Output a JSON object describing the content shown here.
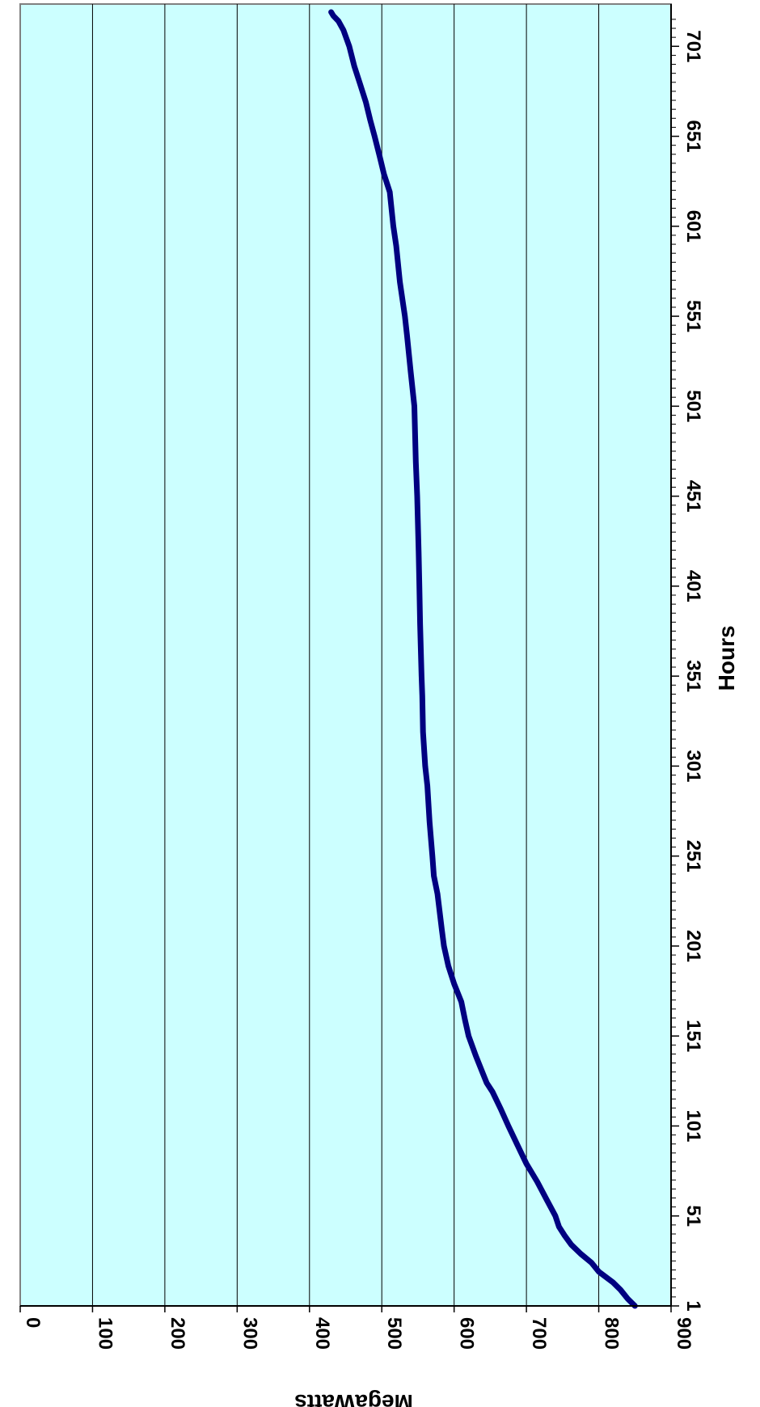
{
  "chart_data": {
    "type": "line",
    "title": "",
    "xlabel": "Hours",
    "ylabel": "MegaWatts",
    "xlim": [
      1,
      720
    ],
    "ylim": [
      0,
      900
    ],
    "x_ticks": [
      1,
      51,
      101,
      151,
      201,
      251,
      301,
      351,
      401,
      451,
      501,
      551,
      601,
      651,
      701
    ],
    "y_ticks": [
      0,
      100,
      200,
      300,
      400,
      500,
      600,
      700,
      800,
      900
    ],
    "grid": "horizontal-major",
    "legend": "none",
    "orientation": "rotated-90-clockwise",
    "colors": {
      "plot_background": "#ccffff",
      "line": "#000080",
      "grid": "#000000"
    },
    "series": [
      {
        "x": [
          1,
          5,
          10,
          14,
          20,
          25,
          30,
          35,
          40,
          45,
          51,
          60,
          70,
          80,
          90,
          101,
          110,
          120,
          125,
          130,
          140,
          151,
          160,
          170,
          180,
          190,
          201,
          210,
          230,
          240,
          251,
          270,
          290,
          301,
          320,
          340,
          351,
          380,
          401,
          420,
          451,
          470,
          501,
          520,
          540,
          551,
          570,
          590,
          601,
          620,
          630,
          640,
          651,
          660,
          670,
          680,
          690,
          701,
          710,
          715,
          718,
          720
        ],
        "y": [
          850,
          840,
          830,
          820,
          800,
          790,
          775,
          762,
          753,
          745,
          740,
          728,
          715,
          700,
          688,
          675,
          665,
          653,
          645,
          640,
          630,
          620,
          615,
          610,
          600,
          592,
          586,
          583,
          577,
          572,
          570,
          566,
          563,
          560,
          557,
          556,
          555,
          553,
          552,
          551,
          549,
          547,
          545,
          540,
          535,
          532,
          525,
          520,
          516,
          511,
          503,
          497,
          490,
          484,
          478,
          470,
          462,
          455,
          447,
          440,
          433,
          430
        ]
      }
    ]
  }
}
